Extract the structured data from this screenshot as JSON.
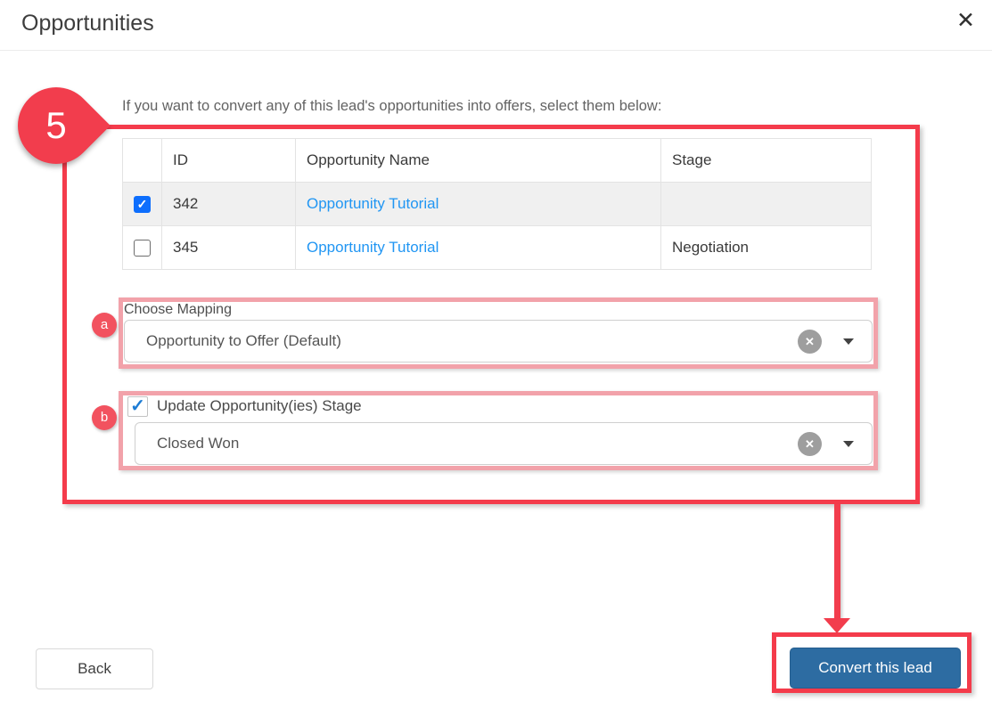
{
  "dialog": {
    "title": "Opportunities"
  },
  "icons": {
    "close": "✕",
    "check": "✓",
    "clear": "✕"
  },
  "instruction": "If you want to convert any of this lead's opportunities into offers, select them below:",
  "table": {
    "columns": [
      "",
      "ID",
      "Opportunity Name",
      "Stage"
    ],
    "rows": [
      {
        "checked": true,
        "id": "342",
        "name": "Opportunity Tutorial",
        "stage": ""
      },
      {
        "checked": false,
        "id": "345",
        "name": "Opportunity Tutorial",
        "stage": "Negotiation"
      }
    ]
  },
  "mapping": {
    "label": "Choose Mapping",
    "value": "Opportunity to Offer (Default)"
  },
  "stage_update": {
    "label": "Update Opportunity(ies) Stage",
    "checked": true,
    "value": "Closed Won"
  },
  "buttons": {
    "back": "Back",
    "convert": "Convert this lead"
  },
  "annotations": {
    "step_number": "5",
    "badge_a": "a",
    "badge_b": "b",
    "red_color": "#f23d4d",
    "pink_color": "#f2a2aa"
  },
  "colors": {
    "link_blue": "#2196f3",
    "checkbox_blue": "#0d6efd",
    "convert_button_blue": "#2d6ca2"
  }
}
